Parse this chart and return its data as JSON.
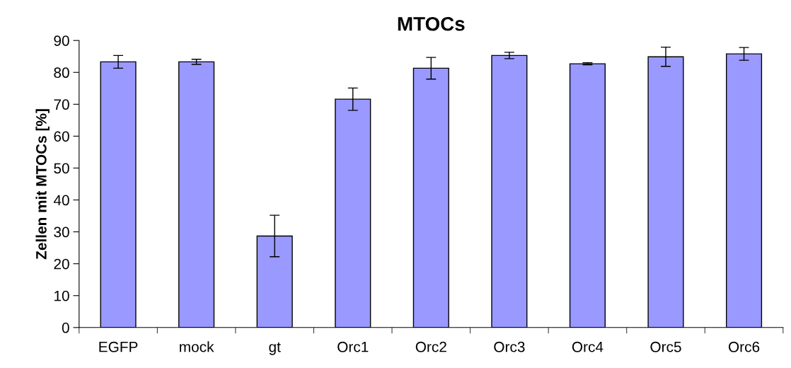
{
  "chart_data": {
    "type": "bar",
    "title": "MTOCs",
    "ylabel": "Zellen mit MTOCs [%]",
    "categories": [
      "EGFP",
      "mock",
      "gt",
      "Orc1",
      "Orc2",
      "Orc3",
      "Orc4",
      "Orc5",
      "Orc6"
    ],
    "values": [
      83.3,
      83.3,
      28.7,
      71.6,
      81.3,
      85.3,
      82.7,
      84.9,
      85.8
    ],
    "errors": [
      2,
      0.8,
      6.5,
      3.5,
      3.4,
      1,
      0.3,
      3,
      2
    ],
    "color": "#9999ff",
    "ylim": [
      0,
      90
    ],
    "yticks": [
      0,
      10,
      20,
      30,
      40,
      50,
      60,
      70,
      80,
      90
    ],
    "grid": false
  }
}
